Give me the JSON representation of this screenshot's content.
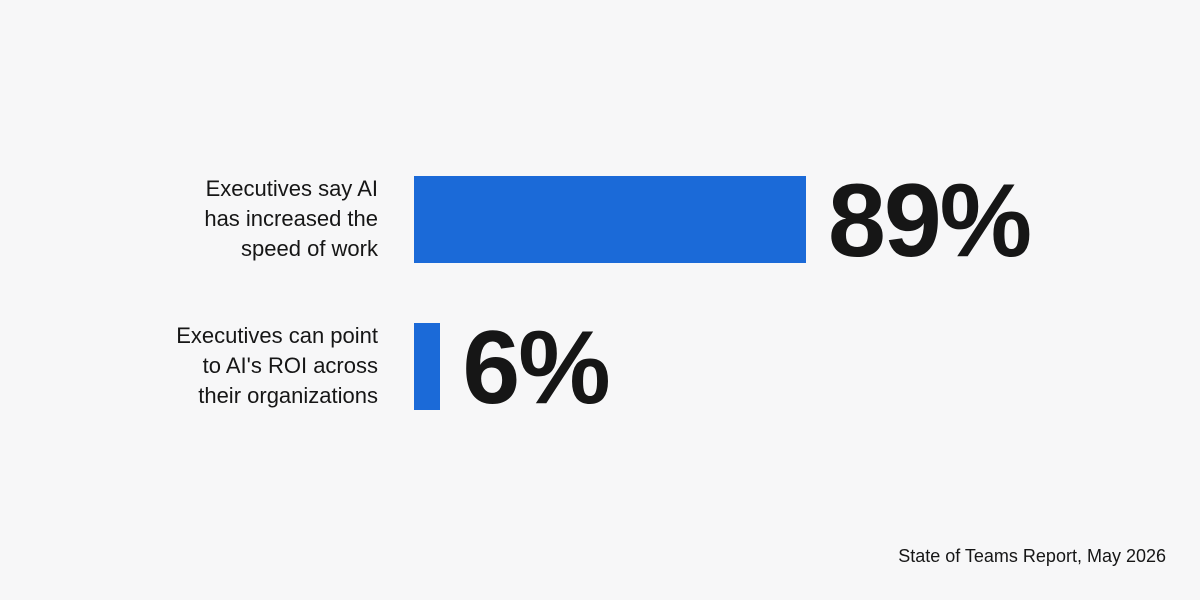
{
  "chart_data": {
    "type": "bar",
    "orientation": "horizontal",
    "categories": [
      "Executives say AI\nhas increased the\nspeed of work",
      "Executives can point\nto AI's ROI across\ntheir organizations"
    ],
    "values": [
      89,
      6
    ],
    "value_labels": [
      "89%",
      "6%"
    ],
    "color": "#1b6ad8",
    "source": "State of Teams Report, May 2026"
  }
}
